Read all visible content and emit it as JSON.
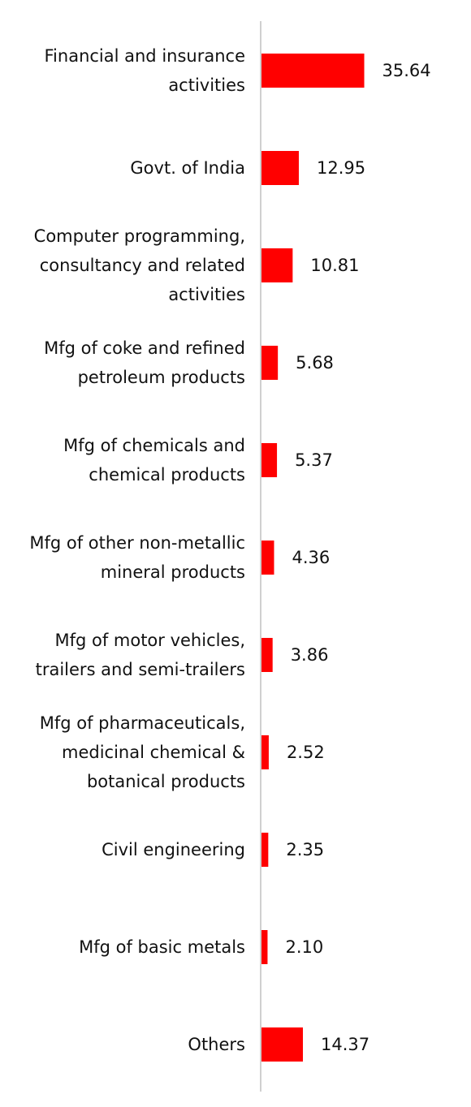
{
  "chart_data": {
    "type": "bar",
    "orientation": "horizontal",
    "categories": [
      [
        "Financial and insurance",
        "activities"
      ],
      [
        "Govt. of India"
      ],
      [
        "Computer programming,",
        "consultancy and related",
        "activities"
      ],
      [
        "Mfg of coke and refined",
        "petroleum products"
      ],
      [
        "Mfg of chemicals and",
        "chemical products"
      ],
      [
        "Mfg of other non-metallic",
        "mineral products"
      ],
      [
        "Mfg of motor vehicles,",
        "trailers and semi-trailers"
      ],
      [
        "Mfg of pharmaceuticals,",
        "medicinal chemical &",
        "botanical products"
      ],
      [
        "Civil engineering"
      ],
      [
        "Mfg of basic metals"
      ],
      [
        "Others"
      ]
    ],
    "values": [
      35.64,
      12.95,
      10.81,
      5.68,
      5.37,
      4.36,
      3.86,
      2.52,
      2.35,
      2.1,
      14.37
    ],
    "value_labels": [
      "35.64",
      "12.95",
      "10.81",
      "5.68",
      "5.37",
      "4.36",
      "3.86",
      "2.52",
      "2.35",
      "2.10",
      "14.37"
    ],
    "xlim": [
      0,
      40
    ],
    "grid": false,
    "legend": "none",
    "bar_color": "#ff0000",
    "axis_color": "#d0d0d0"
  }
}
